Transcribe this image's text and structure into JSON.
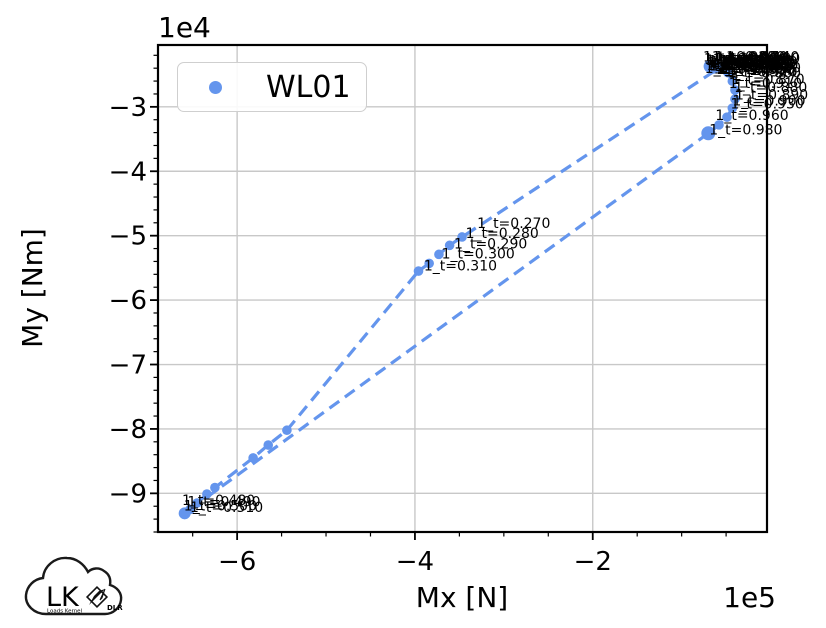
{
  "legend": {
    "label": "WL01"
  },
  "logo": {
    "lk": "LK",
    "subtitle": "Loads Kernel",
    "dlr": "DLR"
  },
  "chart_data": {
    "type": "scatter",
    "title": "",
    "xlabel": "Mx [N]",
    "ylabel": "My [Nm]",
    "x_offset_text": "1e5",
    "y_offset_text": "1e4",
    "x_unit_multiplier": 100000,
    "y_unit_multiplier": 10000,
    "xlim": [
      -6.89,
      -0.04
    ],
    "ylim": [
      -9.6,
      -2.04
    ],
    "grid": true,
    "legend_position": "upper left",
    "x_ticks": {
      "values": [
        -6,
        -4,
        -2
      ],
      "labels": [
        "−6",
        "−4",
        "−2"
      ],
      "minor_step": 0.5
    },
    "y_ticks": {
      "values": [
        -3,
        -4,
        -5,
        -6,
        -7,
        -8,
        -9
      ],
      "labels": [
        "−3",
        "−4",
        "−5",
        "−6",
        "−7",
        "−8",
        "−9"
      ],
      "minor_step": 0.2
    },
    "series": [
      {
        "name": "WL01",
        "color": "#6495ED",
        "marker": "circle",
        "linestyle": "dashed",
        "closed": true,
        "points": [
          [
            -0.68,
            -2.37,
            6.5
          ],
          [
            -0.64,
            -2.4,
            5.5
          ],
          [
            -0.61,
            -2.36
          ],
          [
            -0.57,
            -2.39
          ],
          [
            -3.47,
            -5.02
          ],
          [
            -3.61,
            -5.15
          ],
          [
            -3.73,
            -5.29
          ],
          [
            -3.84,
            -5.43
          ],
          [
            -3.96,
            -5.55
          ],
          [
            -5.44,
            -8.02
          ],
          [
            -5.65,
            -8.25
          ],
          [
            -5.82,
            -8.45
          ],
          [
            -6.25,
            -8.91
          ],
          [
            -6.34,
            -9.01
          ],
          [
            -6.45,
            -9.15
          ],
          [
            -6.53,
            -9.25
          ],
          [
            -6.59,
            -9.31,
            6
          ],
          [
            -0.7,
            -3.41,
            7
          ],
          [
            -0.58,
            -3.28
          ],
          [
            -0.49,
            -3.16
          ],
          [
            -0.43,
            -3.02
          ],
          [
            -0.4,
            -2.88
          ],
          [
            -0.4,
            -2.74
          ],
          [
            -0.43,
            -2.6
          ],
          [
            -0.48,
            -2.47
          ],
          [
            -0.56,
            -2.38
          ]
        ]
      }
    ],
    "annotations": [
      {
        "label": "1_t=0.000",
        "x": -0.76,
        "y": -2.22
      },
      {
        "label": "1_t=0.010",
        "x": -0.7,
        "y": -2.28
      },
      {
        "label": "1_t=0.020",
        "x": -0.64,
        "y": -2.34
      },
      {
        "label": "1_t=0.030",
        "x": -0.58,
        "y": -2.4
      },
      {
        "label": "1_t=0.040",
        "x": -0.52,
        "y": -2.3
      },
      {
        "label": "1_t=0.050",
        "x": -0.75,
        "y": -2.25
      },
      {
        "label": "1_t=0.060",
        "x": -0.69,
        "y": -2.36
      },
      {
        "label": "1_t=0.070",
        "x": -0.63,
        "y": -2.22
      },
      {
        "label": "1_t=0.080",
        "x": -0.57,
        "y": -2.28
      },
      {
        "label": "1_t=0.090",
        "x": -0.51,
        "y": -2.34
      },
      {
        "label": "1_t=0.100",
        "x": -0.74,
        "y": -2.4
      },
      {
        "label": "1_t=0.110",
        "x": -0.68,
        "y": -2.3
      },
      {
        "label": "1_t=0.120",
        "x": -0.62,
        "y": -2.24
      },
      {
        "label": "1_t=0.130",
        "x": -0.56,
        "y": -2.36
      },
      {
        "label": "1_t=0.140",
        "x": -0.5,
        "y": -2.22
      },
      {
        "label": "1_t=0.150",
        "x": -0.73,
        "y": -2.27
      },
      {
        "label": "1_t=0.160",
        "x": -0.67,
        "y": -2.33
      },
      {
        "label": "1_t=0.170",
        "x": -0.61,
        "y": -2.39
      },
      {
        "label": "1_t=0.180",
        "x": -0.55,
        "y": -2.29
      },
      {
        "label": "1_t=0.190",
        "x": -0.49,
        "y": -2.24
      },
      {
        "label": "1_t=0.200",
        "x": -0.72,
        "y": -2.35
      },
      {
        "label": "1_t=0.210",
        "x": -0.66,
        "y": -2.22
      },
      {
        "label": "1_t=0.220",
        "x": -0.6,
        "y": -2.28
      },
      {
        "label": "1_t=0.230",
        "x": -0.54,
        "y": -2.33
      },
      {
        "label": "1_t=0.240",
        "x": -0.48,
        "y": -2.39
      },
      {
        "label": "1_t=0.250",
        "x": -0.71,
        "y": -2.31
      },
      {
        "label": "1_t=0.260",
        "x": -0.65,
        "y": -2.26
      },
      {
        "label": "1_t=0.270",
        "x": -3.3,
        "y": -4.8
      },
      {
        "label": "1_t=0.280",
        "x": -3.43,
        "y": -4.96
      },
      {
        "label": "1_t=0.290",
        "x": -3.56,
        "y": -5.12
      },
      {
        "label": "1_t=0.300",
        "x": -3.7,
        "y": -5.28
      },
      {
        "label": "1_t=0.310",
        "x": -3.9,
        "y": -5.46
      },
      {
        "label": "1_t=0.480",
        "x": -6.62,
        "y": -9.1
      },
      {
        "label": "1_t=0.490",
        "x": -6.56,
        "y": -9.13
      },
      {
        "label": "1_t=0.500",
        "x": -6.6,
        "y": -9.19
      },
      {
        "label": "1_t=0.510",
        "x": -6.53,
        "y": -9.21
      },
      {
        "label": "1_t=0.850",
        "x": -0.55,
        "y": -2.41
      },
      {
        "label": "1_t=0.860",
        "x": -0.48,
        "y": -2.47
      },
      {
        "label": "1_t=0.870",
        "x": -0.44,
        "y": -2.57
      },
      {
        "label": "1_t=0.880",
        "x": -0.41,
        "y": -2.69
      },
      {
        "label": "1_t=0.890",
        "x": -0.4,
        "y": -2.81
      },
      {
        "label": "1_t=0.900",
        "x": -0.43,
        "y": -2.9
      },
      {
        "label": "1_t=0.910",
        "x": -0.47,
        "y": -2.63
      },
      {
        "label": "1_t=0.920",
        "x": -0.52,
        "y": -2.45
      },
      {
        "label": "1_t=0.930",
        "x": -0.45,
        "y": -2.95
      },
      {
        "label": "1_t=0.960",
        "x": -0.62,
        "y": -3.13
      },
      {
        "label": "1_t=0.980",
        "x": -0.69,
        "y": -3.35
      }
    ]
  }
}
